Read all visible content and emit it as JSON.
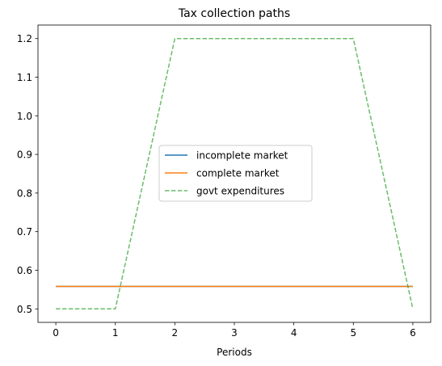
{
  "chart_data": {
    "type": "line",
    "title": "Tax collection paths",
    "xlabel": "Periods",
    "ylabel": "",
    "xlim": [
      -0.3,
      6.3
    ],
    "ylim": [
      0.465,
      1.235
    ],
    "xticks": [
      0,
      1,
      2,
      3,
      4,
      5,
      6
    ],
    "yticks": [
      0.5,
      0.6,
      0.7,
      0.8,
      0.9,
      1.0,
      1.1,
      1.2
    ],
    "grid": false,
    "legend_position": "center",
    "series": [
      {
        "name": "incomplete market",
        "color": "#1f77b4",
        "style": "solid",
        "x": [
          0,
          1,
          2,
          3,
          4,
          5,
          6
        ],
        "y": [
          0.558,
          0.558,
          0.558,
          0.558,
          0.558,
          0.558,
          0.558
        ]
      },
      {
        "name": "complete market",
        "color": "#ff7f0e",
        "style": "solid",
        "x": [
          0,
          1,
          2,
          3,
          4,
          5,
          6
        ],
        "y": [
          0.558,
          0.558,
          0.558,
          0.558,
          0.558,
          0.558,
          0.558
        ]
      },
      {
        "name": "govt expenditures",
        "color": "#2ca02c",
        "style": "dashed",
        "opacity": 0.7,
        "x": [
          0,
          1,
          2,
          3,
          4,
          5,
          6
        ],
        "y": [
          0.5,
          0.5,
          1.2,
          1.2,
          1.2,
          1.2,
          0.5
        ]
      }
    ]
  }
}
